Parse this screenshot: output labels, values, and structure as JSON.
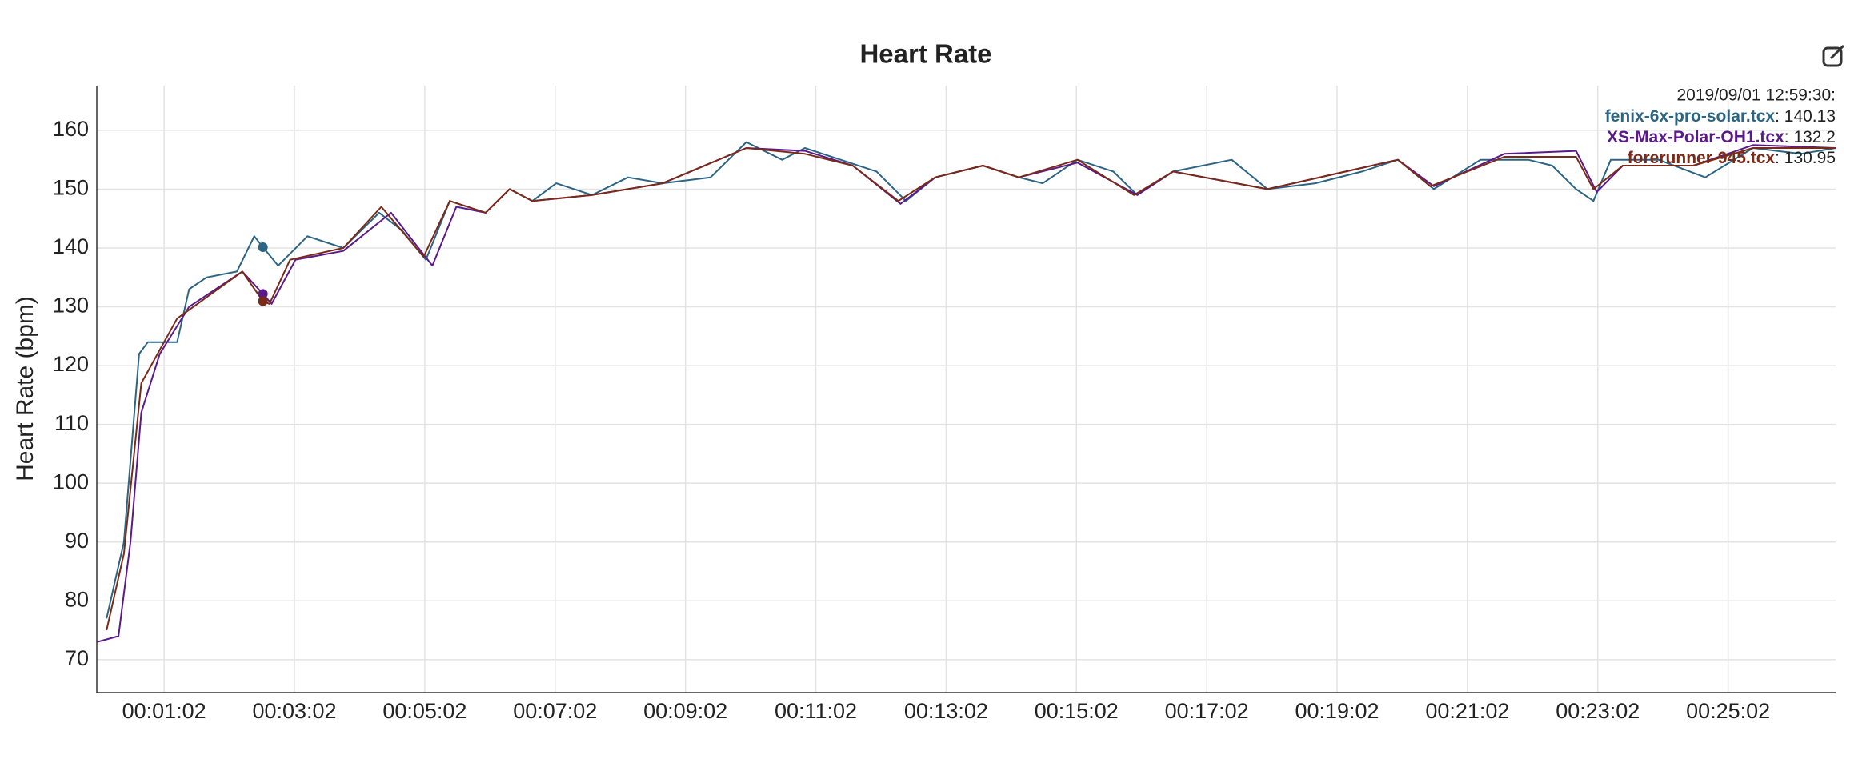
{
  "chart_data": {
    "type": "line",
    "title": "Heart Rate",
    "ylabel": "Heart Rate (bpm)",
    "xlim": [
      0,
      1601
    ],
    "ylim": [
      64.4,
      167.6
    ],
    "yticks": [
      70,
      80,
      90,
      100,
      110,
      120,
      130,
      140,
      150,
      160
    ],
    "xticks": [
      {
        "value": 62,
        "label": "00:01:02"
      },
      {
        "value": 182,
        "label": "00:03:02"
      },
      {
        "value": 302,
        "label": "00:05:02"
      },
      {
        "value": 422,
        "label": "00:07:02"
      },
      {
        "value": 542,
        "label": "00:09:02"
      },
      {
        "value": 662,
        "label": "00:11:02"
      },
      {
        "value": 782,
        "label": "00:13:02"
      },
      {
        "value": 902,
        "label": "00:15:02"
      },
      {
        "value": 1022,
        "label": "00:17:02"
      },
      {
        "value": 1142,
        "label": "00:19:02"
      },
      {
        "value": 1262,
        "label": "00:21:02"
      },
      {
        "value": 1382,
        "label": "00:23:02"
      },
      {
        "value": 1502,
        "label": "00:25:02"
      }
    ],
    "grid": true,
    "series": [
      {
        "name": "fenix-6x-pro-solar.tcx",
        "color": "#2b6583",
        "x": [
          9,
          25,
          39,
          47,
          74,
          85,
          101,
          129,
          145,
          153,
          167,
          194,
          227,
          260,
          281,
          303,
          325,
          358,
          380,
          401,
          423,
          456,
          489,
          521,
          565,
          598,
          631,
          652,
          685,
          718,
          745,
          772,
          816,
          849,
          871,
          903,
          936,
          958,
          991,
          1045,
          1078,
          1122,
          1165,
          1198,
          1231,
          1274,
          1318,
          1340,
          1362,
          1378,
          1394,
          1438,
          1481,
          1525,
          1569,
          1601
        ],
        "values": [
          77,
          90,
          122,
          124,
          124,
          133,
          135,
          136,
          142,
          140.13,
          137,
          142,
          140,
          146,
          143,
          138,
          148,
          146,
          150,
          148,
          151,
          149,
          152,
          151,
          152,
          158,
          155,
          157,
          155,
          153,
          148,
          152,
          154,
          152,
          151,
          155,
          153,
          149,
          153,
          155,
          150,
          151,
          153,
          155,
          150,
          155,
          155,
          154,
          150,
          148,
          155,
          155,
          152,
          157,
          156,
          157
        ]
      },
      {
        "name": "XS-Max-Polar-OH1.tcx",
        "color": "#5a1a8a",
        "x": [
          0,
          20,
          31,
          41,
          58,
          85,
          134,
          153,
          161,
          183,
          227,
          271,
          292,
          309,
          331,
          358,
          380,
          401,
          456,
          521,
          598,
          652,
          696,
          740,
          772,
          816,
          849,
          903,
          958,
          991,
          1078,
          1198,
          1231,
          1296,
          1362,
          1381,
          1405,
          1470,
          1525,
          1601
        ],
        "values": [
          73,
          74,
          90,
          112,
          122,
          130,
          136,
          132.2,
          130.5,
          138,
          139.5,
          146,
          141,
          137,
          147,
          146,
          150,
          148,
          149,
          151,
          157,
          156.5,
          154,
          147.5,
          152,
          154,
          152,
          154.5,
          149,
          153,
          150,
          155,
          150.5,
          156,
          156.5,
          149.5,
          154,
          154,
          157.5,
          157
        ]
      },
      {
        "name": "forerunner-945.tcx",
        "color": "#7b2a18",
        "x": [
          9,
          25,
          41,
          74,
          134,
          153,
          159,
          178,
          227,
          262,
          301,
          325,
          358,
          380,
          401,
          456,
          521,
          598,
          652,
          696,
          738,
          772,
          816,
          849,
          903,
          955,
          991,
          1078,
          1198,
          1228,
          1296,
          1362,
          1378,
          1405,
          1470,
          1525,
          1601
        ],
        "values": [
          75,
          88,
          117,
          128,
          136,
          130.95,
          130.5,
          138,
          140,
          147,
          138.5,
          148,
          146,
          150,
          148,
          149,
          151,
          157,
          156,
          154,
          148,
          152,
          154,
          152,
          155,
          149,
          153,
          150,
          155,
          150.5,
          155.5,
          155.5,
          150,
          154,
          154,
          157,
          157
        ]
      }
    ],
    "tooltip": {
      "x": "2019/09/01 12:59:30:",
      "values": [
        140.13,
        132.2,
        130.95
      ]
    }
  }
}
